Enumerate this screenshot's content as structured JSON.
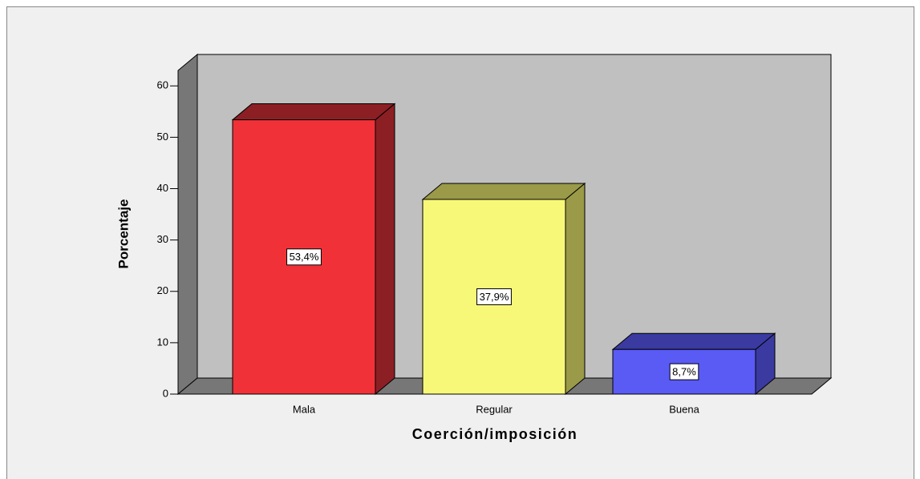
{
  "chart_data": {
    "type": "bar3d",
    "x_label": "Coerción/imposición",
    "y_label": "Porcentaje",
    "categories": [
      "Mala",
      "Regular",
      "Buena"
    ],
    "values": [
      53.4,
      37.9,
      8.7
    ],
    "value_labels": [
      "53,4%",
      "37,9%",
      "8,7%"
    ],
    "colors": [
      "#f03238",
      "#f8f878",
      "#5a5af5"
    ],
    "side_colors": [
      "#8c1f24",
      "#9a9a48",
      "#3a3aa0"
    ],
    "ylim": [
      0,
      63
    ],
    "yticks": [
      0,
      10,
      20,
      30,
      40,
      50,
      60
    ]
  }
}
